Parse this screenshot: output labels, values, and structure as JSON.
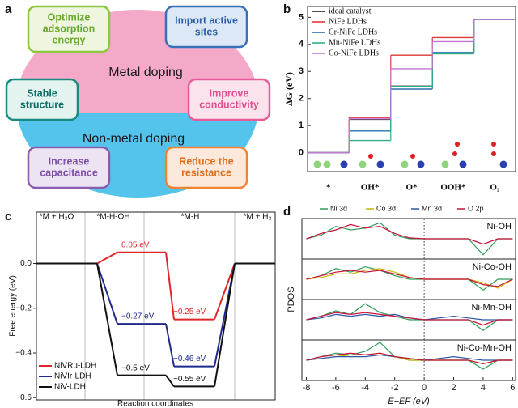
{
  "panel_a": {
    "label": "a",
    "center_top": "Metal doping",
    "center_bottom": "Non-metal doping",
    "boxes": [
      {
        "lines": [
          "Optimize",
          "adsorption",
          "energy"
        ]
      },
      {
        "lines": [
          "Import active",
          "sites"
        ]
      },
      {
        "lines": [
          "Stable",
          "structure"
        ]
      },
      {
        "lines": [
          "Improve",
          "conductivity"
        ]
      },
      {
        "lines": [
          "Increase",
          "capacitance"
        ]
      },
      {
        "lines": [
          "Reduce the",
          "resistance"
        ]
      }
    ]
  },
  "chart_data": [
    {
      "type": "step",
      "label": "b",
      "y_label": "ΔG (eV)",
      "categories": [
        "*",
        "OH*",
        "O*",
        "OOH*",
        "O₂"
      ],
      "ylim": [
        -0.7,
        5.4
      ],
      "yticks": [
        0,
        1,
        2,
        3,
        4,
        5
      ],
      "legend": "upper-left",
      "series": [
        {
          "name": "ideal catalyst",
          "color": "#222222",
          "values": [
            0,
            1.23,
            2.46,
            3.69,
            4.92
          ]
        },
        {
          "name": "NiFe LDHs",
          "color": "#e0383a",
          "values": [
            0,
            1.3,
            3.6,
            4.25,
            4.92
          ]
        },
        {
          "name": "Cr-NiFe LDHs",
          "color": "#2d6fb0",
          "values": [
            0,
            0.8,
            2.35,
            3.7,
            4.92
          ]
        },
        {
          "name": "Mn-NiFe LDHs",
          "color": "#2fb08a",
          "values": [
            0,
            0.45,
            2.45,
            3.65,
            4.92
          ]
        },
        {
          "name": "Co-NiFe LDHs",
          "color": "#c277d0",
          "values": [
            0,
            1.25,
            3.1,
            4.1,
            4.92
          ]
        }
      ]
    },
    {
      "type": "energy-levels",
      "label": "c",
      "x_label": "Reaction coordinates",
      "y_label": "Free energy (eV)",
      "categories": [
        "*M + H₂O",
        "*M-H-OH",
        "*M-H",
        "*M + H₂"
      ],
      "ylim": [
        -0.61,
        0.23
      ],
      "yticks": [
        {
          "value": 0,
          "label": "0.0"
        },
        {
          "value": -0.2,
          "label": "−0.2"
        },
        {
          "value": -0.4,
          "label": "−0.4"
        },
        {
          "value": -0.6,
          "label": "−0.6"
        }
      ],
      "legend": "lower-left",
      "series": [
        {
          "name": "NiVRu-LDH",
          "color": "#e0262b",
          "values": [
            0,
            0.05,
            -0.25,
            0
          ],
          "value_labels": [
            null,
            "0.05 eV",
            "−0.25 eV",
            null
          ]
        },
        {
          "name": "NiVIr-LDH",
          "color": "#1f2a8c",
          "values": [
            0,
            -0.27,
            -0.46,
            0
          ],
          "value_labels": [
            null,
            "−0.27 eV",
            "−0.46 eV",
            null
          ]
        },
        {
          "name": "NiV-LDH",
          "color": "#111111",
          "values": [
            0,
            -0.5,
            -0.55,
            0
          ],
          "value_labels": [
            null,
            "−0.5 eV",
            "−0.55 eV",
            null
          ]
        }
      ]
    },
    {
      "type": "pdos",
      "label": "d",
      "x_label": "E−EF (eV)",
      "y_label": "PDOS",
      "xlim": [
        -8.3,
        6.2
      ],
      "xticks": [
        -8,
        -6,
        -4,
        -2,
        0,
        2,
        4,
        6
      ],
      "legend": [
        {
          "name": "Ni 3d",
          "color": "#2e9e5b"
        },
        {
          "name": "Co 3d",
          "color": "#c9b400"
        },
        {
          "name": "Mn 3d",
          "color": "#2a57a5"
        },
        {
          "name": "O 2p",
          "color": "#c8103a"
        }
      ],
      "x": [
        -8,
        -7,
        -6,
        -5,
        -4,
        -3,
        -2,
        -1,
        0,
        1,
        2,
        3,
        4,
        5,
        6
      ],
      "subpanels": [
        {
          "label": "Ni-OH",
          "series": [
            {
              "name": "Ni 3d",
              "color": "#2e9e5b",
              "values": [
                0,
                0.2,
                0.7,
                0.5,
                0.6,
                0.9,
                0.2,
                0,
                0,
                0,
                0,
                0,
                -0.9,
                0,
                0
              ]
            },
            {
              "name": "O 2p",
              "color": "#c8103a",
              "values": [
                0,
                0.3,
                0.5,
                0.8,
                0.6,
                0.7,
                0.3,
                0.05,
                0,
                0,
                0,
                0,
                -0.3,
                0,
                0
              ]
            }
          ]
        },
        {
          "label": "Ni-Co-OH",
          "series": [
            {
              "name": "Ni 3d",
              "color": "#2e9e5b",
              "values": [
                0,
                0.2,
                0.6,
                0.4,
                0.7,
                0.5,
                0.2,
                0,
                0,
                0,
                0,
                0,
                -0.6,
                0,
                0
              ]
            },
            {
              "name": "Co 3d",
              "color": "#c9b400",
              "values": [
                0,
                0.1,
                0.3,
                0.3,
                0.5,
                0.6,
                0.4,
                0.1,
                0,
                0,
                0,
                0,
                -0.2,
                -0.5,
                0
              ]
            },
            {
              "name": "O 2p",
              "color": "#c8103a",
              "values": [
                0,
                0.2,
                0.4,
                0.5,
                0.4,
                0.5,
                0.3,
                0.1,
                0,
                0,
                0,
                0,
                -0.3,
                -0.4,
                0
              ]
            }
          ]
        },
        {
          "label": "Ni-Mn-OH",
          "series": [
            {
              "name": "Ni 3d",
              "color": "#2e9e5b",
              "values": [
                0,
                0.2,
                0.5,
                0.3,
                0.9,
                0.4,
                0.2,
                0,
                0,
                0,
                0,
                0,
                -0.6,
                0,
                0
              ]
            },
            {
              "name": "Mn 3d",
              "color": "#2a57a5",
              "values": [
                0,
                0.1,
                0.3,
                0.2,
                0.3,
                0.2,
                0.3,
                0.1,
                0,
                0.1,
                0.2,
                0.1,
                0,
                0,
                0
              ]
            },
            {
              "name": "O 2p",
              "color": "#c8103a",
              "values": [
                0,
                0.2,
                0.4,
                0.3,
                0.4,
                0.3,
                0.2,
                0.1,
                0,
                0,
                0,
                0,
                -0.3,
                0,
                0
              ]
            }
          ]
        },
        {
          "label": "Ni-Co-Mn-OH",
          "series": [
            {
              "name": "Ni 3d",
              "color": "#2e9e5b",
              "values": [
                0,
                0.2,
                0.4,
                0.3,
                0.5,
                1.0,
                0.2,
                0,
                0,
                0,
                0,
                0,
                -0.5,
                0,
                0
              ]
            },
            {
              "name": "Co 3d",
              "color": "#c9b400",
              "values": [
                0,
                0.1,
                0.2,
                0.3,
                0.3,
                0.4,
                0.2,
                0,
                0,
                0,
                0,
                0,
                -0.2,
                0,
                0
              ]
            },
            {
              "name": "Mn 3d",
              "color": "#2a57a5",
              "values": [
                0,
                0.1,
                0.2,
                0.2,
                0.2,
                0.3,
                0.2,
                0.1,
                0,
                0.1,
                0.2,
                0.1,
                0,
                0,
                0
              ]
            },
            {
              "name": "O 2p",
              "color": "#c8103a",
              "values": [
                0,
                0.2,
                0.3,
                0.4,
                0.3,
                0.4,
                0.2,
                0.1,
                0,
                0,
                0,
                0,
                -0.2,
                0,
                0
              ]
            }
          ]
        }
      ]
    }
  ]
}
